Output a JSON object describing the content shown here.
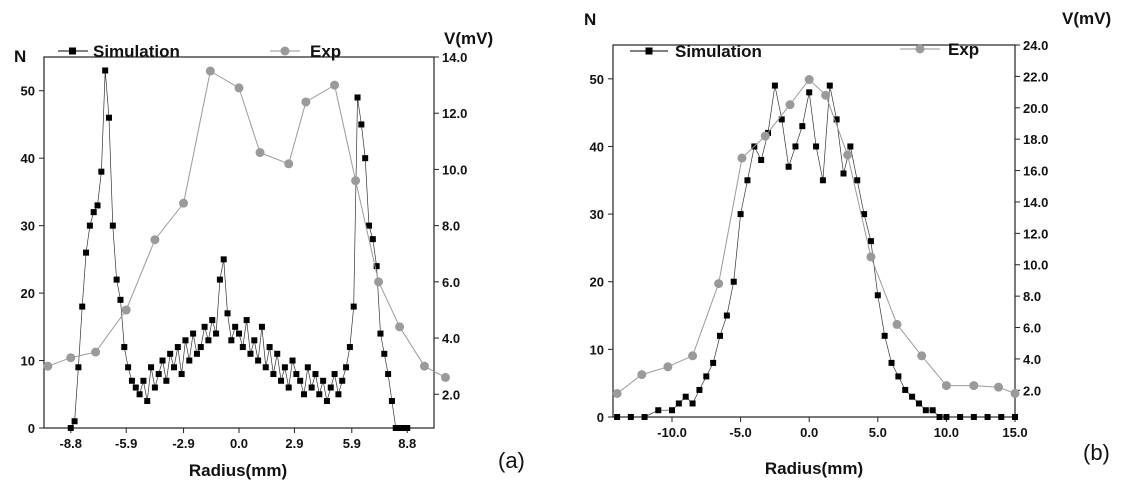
{
  "chart_data": [
    {
      "type": "scatter",
      "panel_label": "(a)",
      "xlabel": "Radius(mm)",
      "ylabel_left": "N",
      "ylabel_right": "V(mV)",
      "x_ticks": [
        "-8.8",
        "-5.9",
        "-2.9",
        "0.0",
        "2.9",
        "5.9",
        "8.8"
      ],
      "x_tick_values": [
        -8.8,
        -5.9,
        -2.9,
        0.0,
        2.9,
        5.9,
        8.8
      ],
      "y_left_ticks": [
        0,
        10,
        20,
        30,
        40,
        50
      ],
      "y_right_ticks": [
        "2.0",
        "4.0",
        "6.0",
        "8.0",
        "10.0",
        "12.0",
        "14.0"
      ],
      "xlim": [
        -10.2,
        10.2
      ],
      "ylim_left": [
        0,
        55
      ],
      "ylim_right": [
        0.8,
        14.0
      ],
      "legend": [
        {
          "label": "Simulation",
          "marker": "square",
          "color": "#000000"
        },
        {
          "label": "Exp",
          "marker": "circle",
          "color": "#909090"
        }
      ],
      "series": [
        {
          "name": "Simulation",
          "axis": "left",
          "marker": "square",
          "color": "#000000",
          "x": [
            -8.8,
            -8.6,
            -8.4,
            -8.2,
            -8.0,
            -7.8,
            -7.6,
            -7.4,
            -7.2,
            -7.0,
            -6.8,
            -6.6,
            -6.4,
            -6.2,
            -6.0,
            -5.8,
            -5.6,
            -5.4,
            -5.2,
            -5.0,
            -4.8,
            -4.6,
            -4.4,
            -4.2,
            -4.0,
            -3.8,
            -3.6,
            -3.4,
            -3.2,
            -3.0,
            -2.8,
            -2.6,
            -2.4,
            -2.2,
            -2.0,
            -1.8,
            -1.6,
            -1.4,
            -1.2,
            -1.0,
            -0.8,
            -0.6,
            -0.4,
            -0.2,
            0.0,
            0.2,
            0.4,
            0.6,
            0.8,
            1.0,
            1.2,
            1.4,
            1.6,
            1.8,
            2.0,
            2.2,
            2.4,
            2.6,
            2.8,
            3.0,
            3.2,
            3.4,
            3.6,
            3.8,
            4.0,
            4.2,
            4.4,
            4.6,
            4.8,
            5.0,
            5.2,
            5.4,
            5.6,
            5.8,
            6.0,
            6.2,
            6.4,
            6.6,
            6.8,
            7.0,
            7.2,
            7.4,
            7.6,
            7.8,
            8.0,
            8.2,
            8.4,
            8.6,
            8.8
          ],
          "y": [
            0,
            1,
            9,
            18,
            26,
            30,
            32,
            33,
            38,
            53,
            46,
            30,
            22,
            19,
            12,
            9,
            7,
            6,
            5,
            7,
            4,
            9,
            6,
            8,
            10,
            7,
            11,
            9,
            12,
            8,
            13,
            10,
            14,
            11,
            12,
            15,
            13,
            16,
            14,
            22,
            25,
            17,
            13,
            15,
            14,
            12,
            16,
            11,
            13,
            10,
            15,
            9,
            12,
            8,
            11,
            7,
            9,
            6,
            10,
            8,
            7,
            5,
            9,
            6,
            8,
            5,
            7,
            4,
            6,
            8,
            5,
            7,
            9,
            12,
            18,
            49,
            45,
            40,
            30,
            28,
            24,
            14,
            11,
            8,
            4,
            0,
            0,
            0,
            0
          ]
        },
        {
          "name": "Exp",
          "axis": "right",
          "marker": "circle",
          "color": "#909090",
          "x": [
            -10.0,
            -8.8,
            -7.5,
            -5.9,
            -4.4,
            -2.9,
            -1.5,
            0.0,
            1.1,
            2.6,
            3.5,
            5.0,
            6.1,
            7.3,
            8.4,
            9.7,
            10.8
          ],
          "y": [
            3.0,
            3.3,
            3.5,
            5.0,
            7.5,
            8.8,
            13.5,
            12.9,
            10.6,
            10.2,
            12.4,
            13.0,
            9.6,
            6.0,
            4.4,
            3.0,
            2.6
          ]
        }
      ]
    },
    {
      "type": "scatter",
      "panel_label": "(b)",
      "xlabel": "Radius(mm)",
      "ylabel_left": "N",
      "ylabel_right": "V(mV)",
      "x_ticks": [
        "-10.0",
        "-5.0",
        "0.0",
        "5.0",
        "10.0",
        "15.0"
      ],
      "x_tick_values": [
        -10.0,
        -5.0,
        0.0,
        5.0,
        10.0,
        15.0
      ],
      "y_left_ticks": [
        0,
        10,
        20,
        30,
        40,
        50
      ],
      "y_right_ticks": [
        "2.0",
        "4.0",
        "6.0",
        "8.0",
        "10.0",
        "12.0",
        "14.0",
        "16.0",
        "18.0",
        "20.0",
        "22.0",
        "24.0"
      ],
      "xlim": [
        -14.3,
        15.0
      ],
      "ylim_left": [
        0,
        55
      ],
      "ylim_right": [
        0.3,
        24.0
      ],
      "legend": [
        {
          "label": "Simulation",
          "marker": "square",
          "color": "#000000"
        },
        {
          "label": "Exp",
          "marker": "circle",
          "color": "#909090"
        }
      ],
      "series": [
        {
          "name": "Simulation",
          "axis": "left",
          "marker": "square",
          "color": "#000000",
          "x": [
            -14.0,
            -13.0,
            -12.0,
            -11.0,
            -10.0,
            -9.5,
            -9.0,
            -8.5,
            -8.0,
            -7.5,
            -7.0,
            -6.5,
            -6.0,
            -5.5,
            -5.0,
            -4.5,
            -4.0,
            -3.5,
            -3.0,
            -2.5,
            -2.0,
            -1.5,
            -1.0,
            -0.5,
            0.0,
            0.5,
            1.0,
            1.5,
            2.0,
            2.5,
            3.0,
            3.5,
            4.0,
            4.5,
            5.0,
            5.5,
            6.0,
            6.5,
            7.0,
            7.5,
            8.0,
            8.5,
            9.0,
            9.5,
            10.0,
            11.0,
            12.0,
            13.0,
            14.0,
            15.0
          ],
          "y": [
            0,
            0,
            0,
            1,
            1,
            2,
            3,
            2,
            4,
            6,
            8,
            12,
            15,
            20,
            30,
            35,
            40,
            38,
            42,
            49,
            44,
            37,
            40,
            43,
            48,
            40,
            35,
            49,
            44,
            36,
            40,
            35,
            30,
            26,
            18,
            12,
            8,
            6,
            4,
            3,
            2,
            1,
            1,
            0,
            0,
            0,
            0,
            0,
            0,
            0
          ]
        },
        {
          "name": "Exp",
          "axis": "right",
          "marker": "circle",
          "color": "#909090",
          "x": [
            -14.0,
            -12.2,
            -10.3,
            -8.5,
            -6.6,
            -4.9,
            -3.2,
            -1.4,
            0.0,
            1.2,
            2.8,
            4.5,
            6.4,
            8.2,
            10.0,
            12.0,
            13.8,
            15.0
          ],
          "y": [
            1.8,
            3.0,
            3.5,
            4.2,
            8.8,
            16.8,
            18.2,
            20.2,
            21.8,
            20.8,
            17.0,
            10.5,
            6.2,
            4.2,
            2.3,
            2.3,
            2.2,
            1.8
          ]
        }
      ]
    }
  ]
}
